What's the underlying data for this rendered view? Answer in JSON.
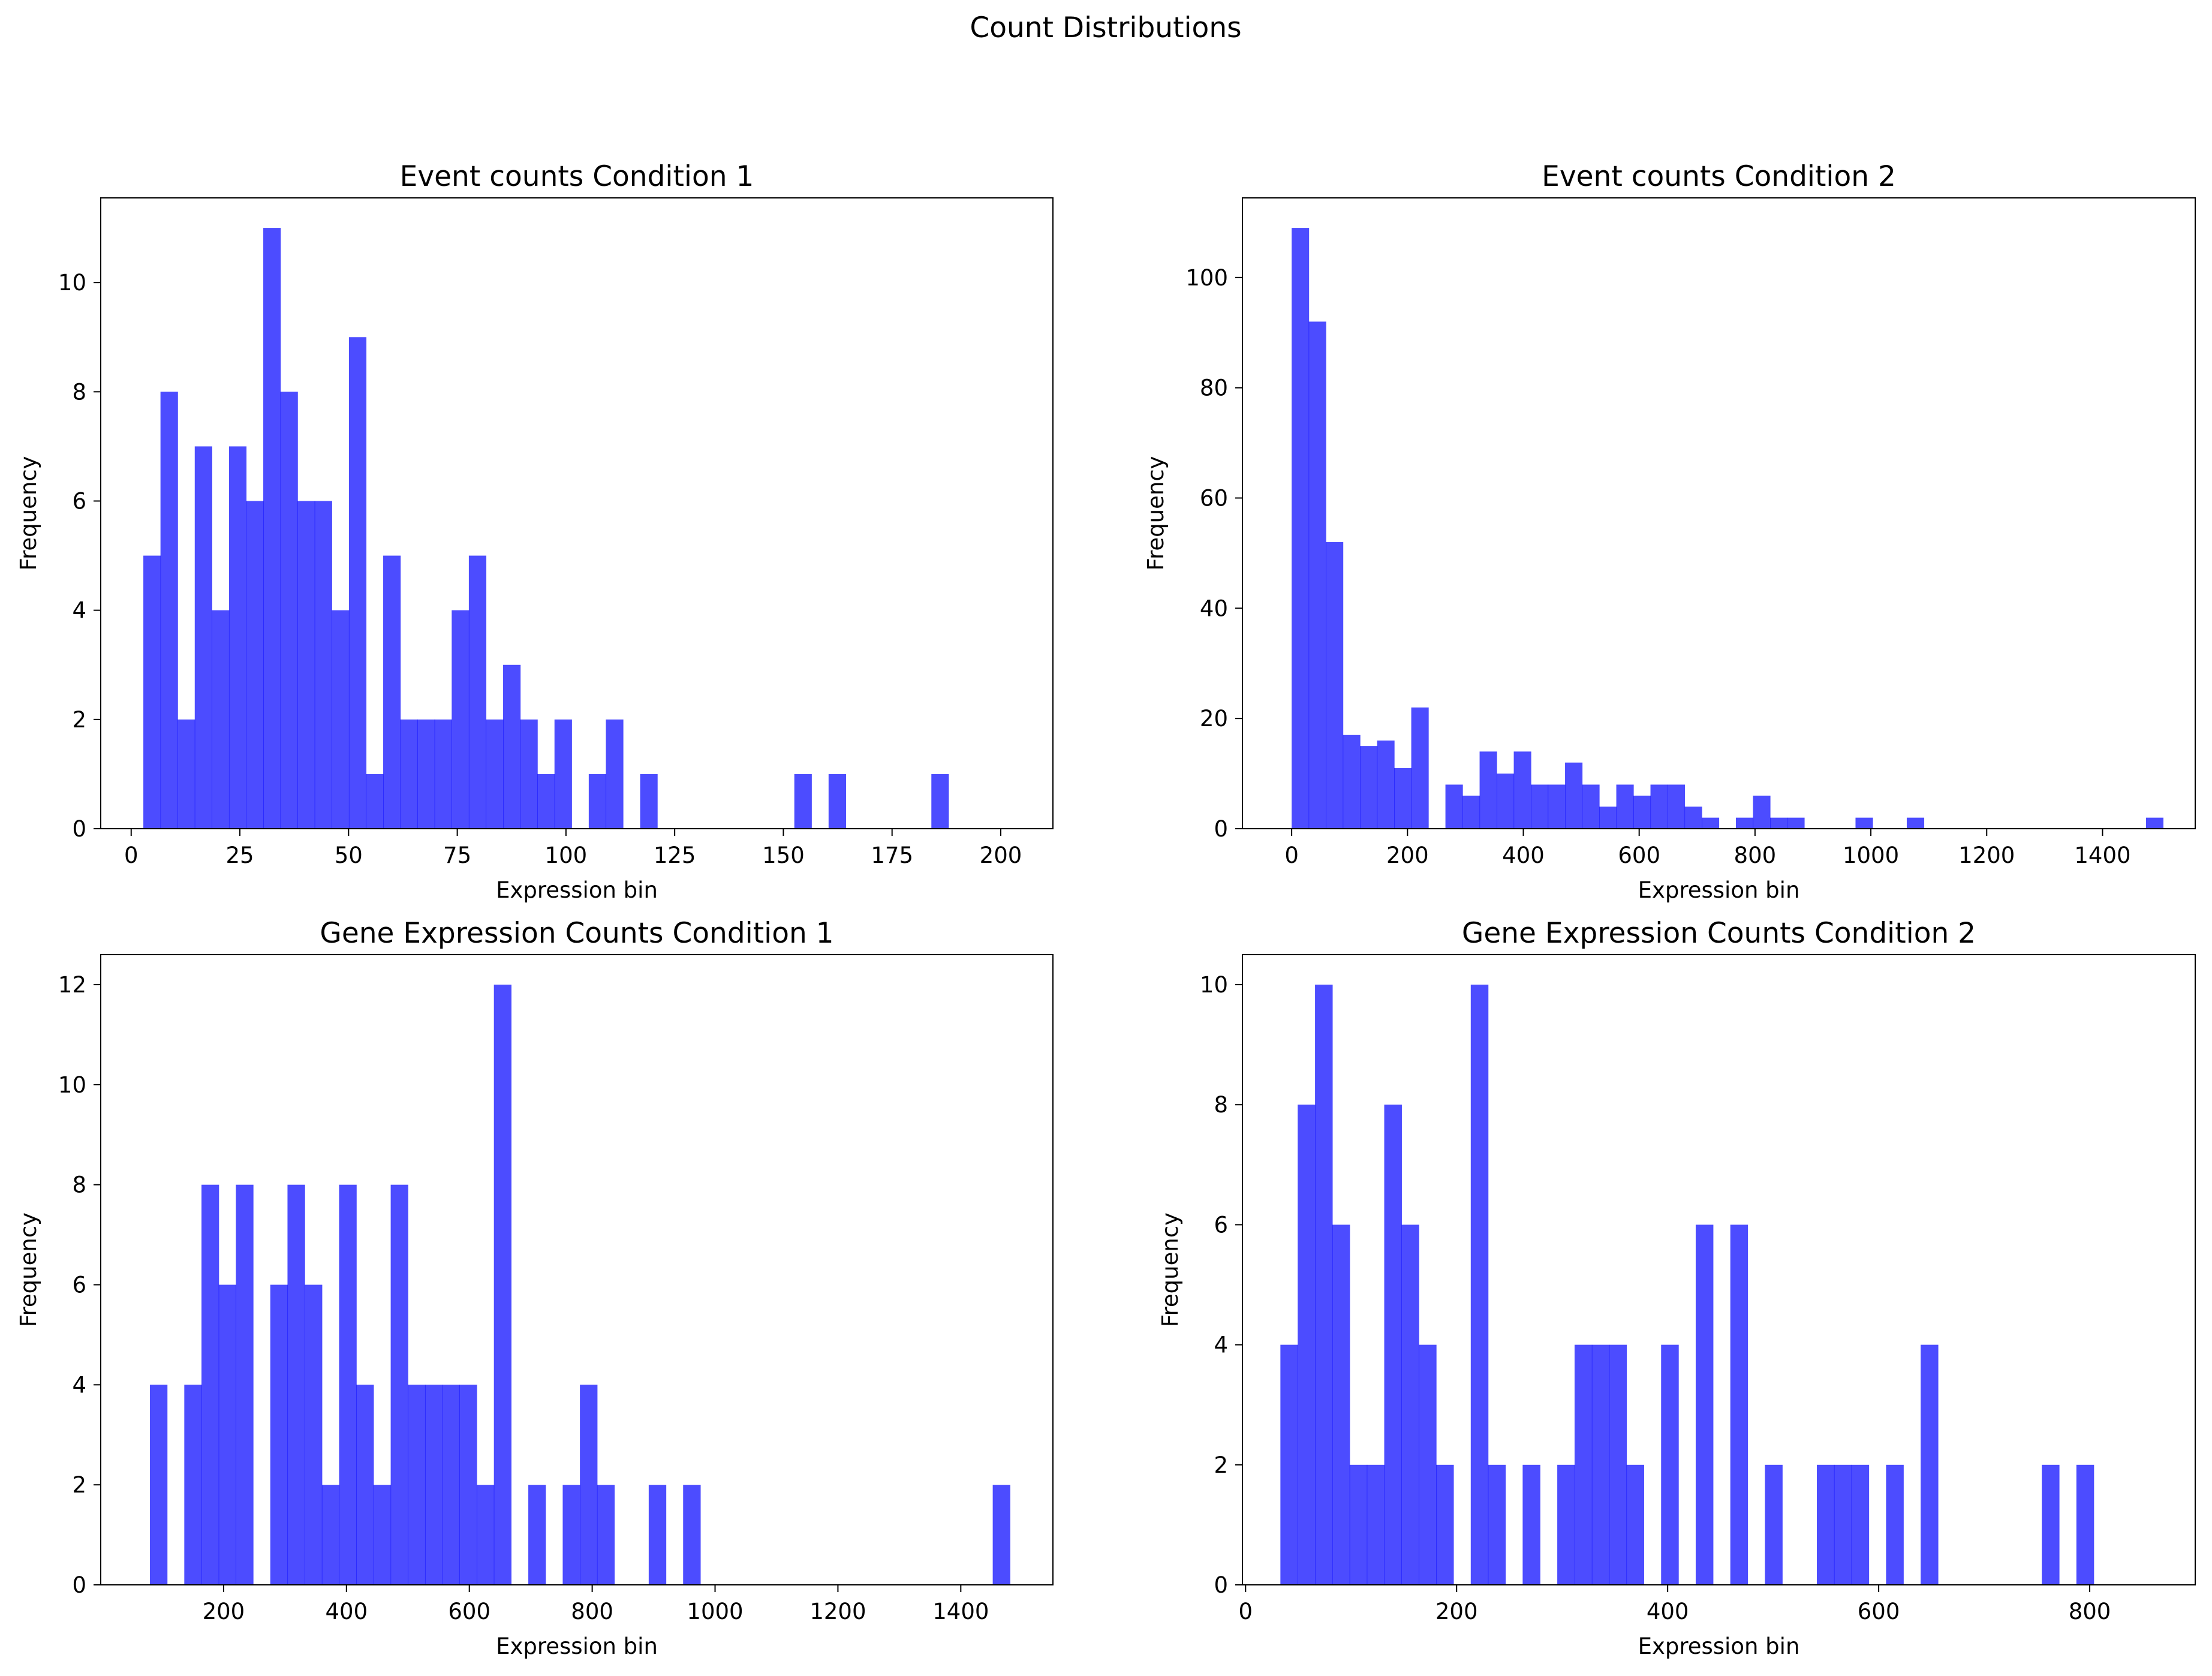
{
  "figure": {
    "suptitle": "Count Distributions",
    "bar_color": "#0000ff",
    "bar_opacity": 0.7
  },
  "chart_data": [
    {
      "type": "bar",
      "title": "Event counts Condition 1",
      "xlabel": "Expression bin",
      "ylabel": "Frequency",
      "bin_start": 2.8,
      "bin_width": 3.94,
      "values": [
        5,
        8,
        2,
        7,
        4,
        7,
        6,
        11,
        8,
        6,
        6,
        4,
        9,
        1,
        5,
        2,
        2,
        2,
        4,
        5,
        2,
        3,
        2,
        1,
        2,
        0,
        1,
        2,
        0,
        1,
        0,
        0,
        0,
        0,
        0,
        0,
        0,
        0,
        1,
        0,
        1,
        0,
        0,
        0,
        0,
        0,
        1,
        0,
        0,
        0
      ],
      "xlim": [
        -7,
        212
      ],
      "ylim": [
        0,
        11.55
      ],
      "xticks": [
        0,
        25,
        50,
        75,
        100,
        125,
        150,
        175,
        200
      ],
      "yticks": [
        0,
        2,
        4,
        6,
        8,
        10
      ]
    },
    {
      "type": "bar",
      "title": "Event counts Condition 2",
      "xlabel": "Expression bin",
      "ylabel": "Frequency",
      "bin_start": 0,
      "bin_width": 29.5,
      "values": [
        109,
        92,
        52,
        17,
        15,
        16,
        11,
        22,
        0,
        8,
        6,
        14,
        10,
        14,
        8,
        8,
        12,
        8,
        4,
        8,
        6,
        8,
        8,
        4,
        2,
        0,
        2,
        6,
        2,
        2,
        0,
        0,
        0,
        2,
        0,
        0,
        2,
        0,
        0,
        0,
        0,
        0,
        0,
        0,
        0,
        0,
        0,
        0,
        0,
        0,
        2
      ],
      "xlim": [
        -85,
        1560
      ],
      "ylim": [
        0,
        114.45
      ],
      "xticks": [
        0,
        200,
        400,
        600,
        800,
        1000,
        1200,
        1400
      ],
      "yticks": [
        0,
        20,
        40,
        60,
        80,
        100
      ]
    },
    {
      "type": "bar",
      "title": "Gene Expression Counts Condition 1",
      "xlabel": "Expression bin",
      "ylabel": "Frequency",
      "bin_start": 80,
      "bin_width": 28,
      "values": [
        4,
        0,
        4,
        8,
        6,
        8,
        0,
        6,
        8,
        6,
        2,
        8,
        4,
        2,
        8,
        4,
        4,
        4,
        4,
        2,
        12,
        0,
        2,
        0,
        2,
        4,
        2,
        0,
        0,
        2,
        0,
        2,
        0,
        0,
        0,
        0,
        0,
        0,
        0,
        0,
        0,
        0,
        0,
        0,
        0,
        0,
        0,
        0,
        0,
        2
      ],
      "xlim": [
        0,
        1550
      ],
      "ylim": [
        0,
        12.6
      ],
      "xticks": [
        200,
        400,
        600,
        800,
        1000,
        1200,
        1400
      ],
      "yticks": [
        0,
        2,
        4,
        6,
        8,
        10,
        12
      ]
    },
    {
      "type": "bar",
      "title": "Gene Expression Counts Condition 2",
      "xlabel": "Expression bin",
      "ylabel": "Frequency",
      "bin_start": 33,
      "bin_width": 16.4,
      "values": [
        4,
        8,
        10,
        6,
        2,
        2,
        8,
        6,
        4,
        2,
        0,
        10,
        2,
        0,
        2,
        0,
        2,
        4,
        4,
        4,
        2,
        0,
        4,
        0,
        6,
        0,
        6,
        0,
        2,
        0,
        0,
        2,
        2,
        2,
        0,
        2,
        0,
        4,
        0,
        0,
        0,
        0,
        0,
        0,
        2,
        0,
        2
      ],
      "xlim": [
        -3,
        900
      ],
      "ylim": [
        0,
        10.5
      ],
      "xticks": [
        0,
        200,
        400,
        600,
        800
      ],
      "yticks": [
        0,
        2,
        4,
        6,
        8,
        10
      ]
    }
  ]
}
